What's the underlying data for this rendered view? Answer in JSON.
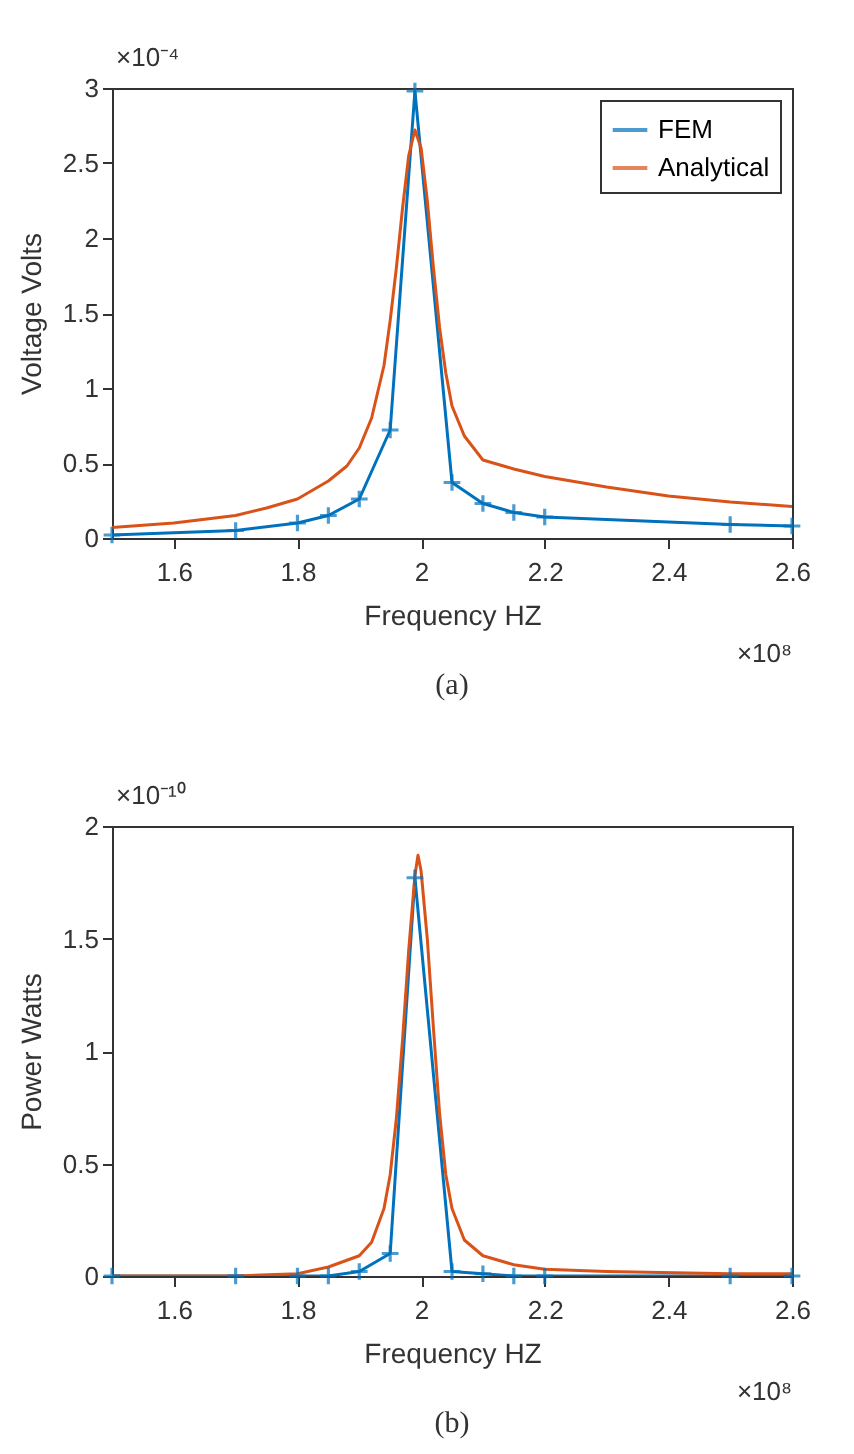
{
  "chart_data": [
    {
      "type": "line",
      "xlabel": "Frequency HZ",
      "ylabel": "Voltage Volts",
      "xlim": [
        1.5,
        2.6
      ],
      "xticks": [
        1.6,
        1.8,
        2,
        2.2,
        2.4,
        2.6
      ],
      "ylim": [
        0,
        3
      ],
      "yticks": [
        0,
        0.5,
        1,
        1.5,
        2,
        2.5,
        3
      ],
      "grid": false,
      "legend": "top right",
      "annotations": [
        "×10⁻⁴",
        "×10⁸",
        "(a)"
      ],
      "series": [
        {
          "name": "FEM",
          "color": "#0072bd",
          "marker": "cross",
          "x": [
            1.5,
            1.7,
            1.8,
            1.85,
            1.9,
            1.95,
            1.99,
            2.05,
            2.1,
            2.15,
            2.2,
            2.5,
            2.6
          ],
          "values": [
            0.02,
            0.05,
            0.1,
            0.15,
            0.26,
            0.72,
            2.98,
            0.37,
            0.23,
            0.17,
            0.14,
            0.09,
            0.08
          ]
        },
        {
          "name": "Analytical",
          "color": "#d95319",
          "x": [
            1.5,
            1.6,
            1.7,
            1.75,
            1.8,
            1.85,
            1.88,
            1.9,
            1.92,
            1.94,
            1.95,
            1.96,
            1.97,
            1.98,
            1.99,
            2.0,
            2.01,
            2.02,
            2.03,
            2.04,
            2.05,
            2.07,
            2.1,
            2.15,
            2.2,
            2.3,
            2.4,
            2.5,
            2.6
          ],
          "values": [
            0.07,
            0.1,
            0.15,
            0.2,
            0.26,
            0.38,
            0.48,
            0.6,
            0.8,
            1.15,
            1.45,
            1.8,
            2.2,
            2.55,
            2.72,
            2.6,
            2.25,
            1.8,
            1.4,
            1.1,
            0.88,
            0.68,
            0.52,
            0.46,
            0.41,
            0.34,
            0.28,
            0.24,
            0.21
          ]
        }
      ]
    },
    {
      "type": "line",
      "xlabel": "Frequency HZ",
      "ylabel": "Power Watts",
      "xlim": [
        1.5,
        2.6
      ],
      "xticks": [
        1.6,
        1.8,
        2,
        2.2,
        2.4,
        2.6
      ],
      "ylim": [
        0,
        2
      ],
      "yticks": [
        0,
        0.5,
        1,
        1.5,
        2
      ],
      "grid": false,
      "legend": "top right",
      "annotations": [
        "×10⁻¹⁰",
        "×10⁸",
        "(b)"
      ],
      "series": [
        {
          "name": "FEM",
          "color": "#0072bd",
          "marker": "cross",
          "x": [
            1.5,
            1.7,
            1.8,
            1.85,
            1.9,
            1.95,
            1.99,
            2.05,
            2.1,
            2.15,
            2.2,
            2.5,
            2.6
          ],
          "values": [
            0,
            0,
            0,
            0,
            0.02,
            0.1,
            1.77,
            0.02,
            0.01,
            0,
            0,
            0,
            0
          ]
        },
        {
          "name": "Analytical",
          "color": "#d95319",
          "x": [
            1.5,
            1.7,
            1.8,
            1.85,
            1.9,
            1.92,
            1.94,
            1.95,
            1.96,
            1.97,
            1.98,
            1.99,
            1.995,
            2.0,
            2.01,
            2.02,
            2.03,
            2.04,
            2.05,
            2.07,
            2.1,
            2.15,
            2.2,
            2.3,
            2.5,
            2.6
          ],
          "values": [
            0,
            0,
            0.01,
            0.04,
            0.09,
            0.15,
            0.3,
            0.45,
            0.7,
            1.05,
            1.45,
            1.78,
            1.87,
            1.8,
            1.5,
            1.1,
            0.72,
            0.45,
            0.3,
            0.16,
            0.09,
            0.05,
            0.03,
            0.02,
            0.01,
            0.01
          ]
        }
      ]
    }
  ]
}
